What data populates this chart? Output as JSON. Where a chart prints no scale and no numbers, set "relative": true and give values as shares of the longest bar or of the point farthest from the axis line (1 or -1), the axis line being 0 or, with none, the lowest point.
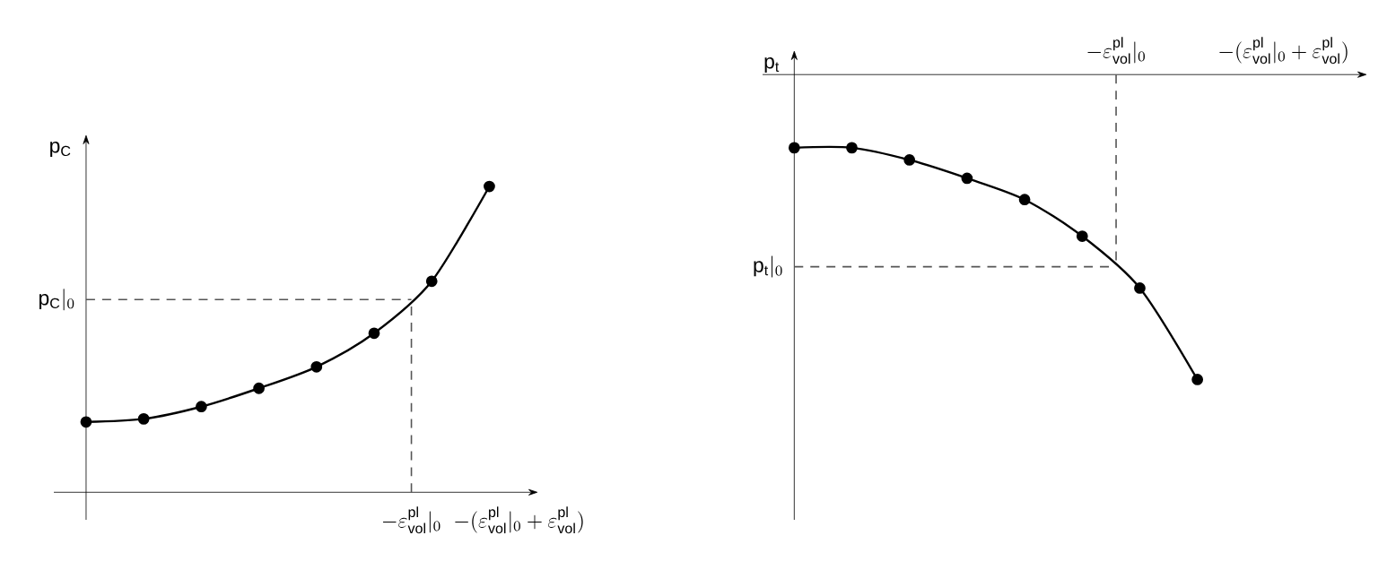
{
  "chart_data": [
    {
      "type": "line",
      "categories": [
        null,
        null,
        null,
        null,
        null,
        null,
        null,
        null
      ],
      "relative": true,
      "values": [
        0.23,
        0.24,
        0.28,
        0.34,
        0.41,
        0.52,
        0.69,
        1
      ],
      "color": "#000000",
      "marker": "circle",
      "line_style": "solid",
      "xlabel": "-(\\varepsilon^{\\mathrm{pl}}_{\\mathrm{vol}}|_{0} + \\varepsilon^{\\mathrm{pl}}_{\\mathrm{vol}})",
      "ylabel": "p$_{C}$",
      "annotations": [
        "-\\varepsilon^{\\mathrm{pl}}_{\\mathrm{vol}}|_{0}"
      ],
      "ref_lines": [
        {
          "axis": "y",
          "value": 0.63,
          "label": "\\mathrm{p}_{\\mathrm{C}}|_{0}",
          "line_style": "dashed",
          "color": "#555555"
        }
      ]
    },
    {
      "type": "line",
      "categories": [
        null,
        null,
        null,
        null,
        null,
        null,
        null,
        null
      ],
      "relative": true,
      "values": [
        -0.24,
        -0.24,
        -0.28,
        -0.34,
        -0.41,
        -0.53,
        -0.7,
        -1
      ],
      "color": "#000000",
      "marker": "circle",
      "line_style": "solid",
      "xlabel": "-(\\varepsilon^{\\mathrm{pl}}_{\\mathrm{vol}}|_{0} + \\varepsilon^{\\mathrm{pl}}_{\\mathrm{vol}})",
      "ylabel": "p$_{t}$",
      "annotations": [
        "-\\varepsilon^{\\mathrm{pl}}_{\\mathrm{vol}}|_{0}"
      ],
      "ref_lines": [
        {
          "axis": "y",
          "value": -0.63,
          "label": "\\mathrm{p}_{\\mathrm{t}}|_{0}",
          "line_style": "dashed",
          "color": "#555555"
        }
      ]
    }
  ]
}
